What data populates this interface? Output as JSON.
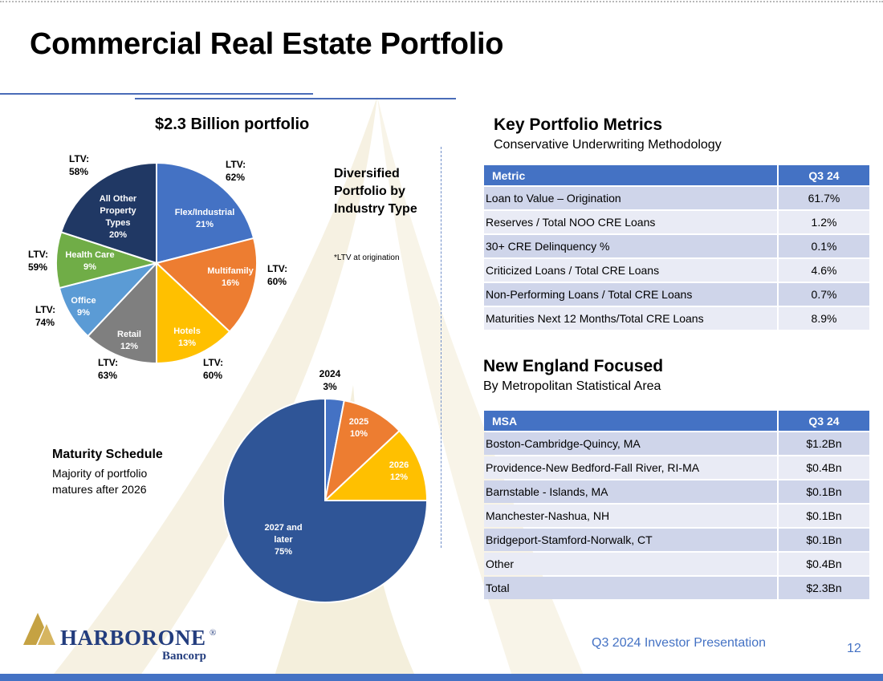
{
  "title": "Commercial Real Estate Portfolio",
  "portfolio_title": "$2.3 Billion portfolio",
  "diversified_label": "Diversified Portfolio by Industry Type",
  "footnote": "*LTV at origination",
  "maturity": {
    "title": "Maturity Schedule",
    "subtitle": "Majority of portfolio matures after 2026"
  },
  "colors": {
    "accent": "#4472c4",
    "flex": "#4472c4",
    "multifamily": "#ed7d31",
    "hotels": "#ffc000",
    "retail": "#7f7f7f",
    "office": "#5b9bd5",
    "health": "#70ad47",
    "other": "#203864"
  },
  "chart_data": [
    {
      "type": "pie",
      "title": "$2.3 Billion portfolio",
      "slices": [
        {
          "name": "Flex/Industrial",
          "pct_label": "21%",
          "value": 21,
          "ltv_label": "LTV:",
          "ltv": "62%"
        },
        {
          "name": "Multifamily",
          "pct_label": "16%",
          "value": 16,
          "ltv_label": "LTV:",
          "ltv": "60%"
        },
        {
          "name": "Hotels",
          "pct_label": "13%",
          "value": 13,
          "ltv_label": "LTV:",
          "ltv": "60%"
        },
        {
          "name": "Retail",
          "pct_label": "12%",
          "value": 12,
          "ltv_label": "LTV:",
          "ltv": "63%"
        },
        {
          "name": "Office",
          "pct_label": "9%",
          "value": 9,
          "ltv_label": "LTV:",
          "ltv": "74%"
        },
        {
          "name": "Health Care",
          "pct_label": "9%",
          "value": 9,
          "ltv_label": "LTV:",
          "ltv": "59%"
        },
        {
          "name": "All Other Property Types",
          "pct_label": "20%",
          "value": 20,
          "ltv_label": "LTV:",
          "ltv": "58%"
        }
      ]
    },
    {
      "type": "pie",
      "title": "Maturity Schedule",
      "slices": [
        {
          "name": "2024",
          "pct_label": "3%",
          "value": 3
        },
        {
          "name": "2025",
          "pct_label": "10%",
          "value": 10
        },
        {
          "name": "2026",
          "pct_label": "12%",
          "value": 12
        },
        {
          "name": "2027 and later",
          "pct_label": "75%",
          "value": 75
        }
      ]
    }
  ],
  "metrics": {
    "title": "Key Portfolio Metrics",
    "subtitle": "Conservative Underwriting Methodology",
    "col_metric": "Metric",
    "col_value": "Q3 24",
    "rows": [
      {
        "label": "Loan to Value – Origination",
        "value": "61.7%"
      },
      {
        "label": "Reserves / Total NOO CRE Loans",
        "value": "1.2%"
      },
      {
        "label": "30+ CRE Delinquency %",
        "value": "0.1%"
      },
      {
        "label": "Criticized Loans / Total CRE Loans",
        "value": "4.6%"
      },
      {
        "label": "Non-Performing Loans / Total CRE Loans",
        "value": "0.7%"
      },
      {
        "label": "Maturities Next 12 Months/Total CRE Loans",
        "value": "8.9%"
      }
    ]
  },
  "msa": {
    "title": "New England Focused",
    "subtitle": "By Metropolitan Statistical Area",
    "col_msa": "MSA",
    "col_value": "Q3 24",
    "rows": [
      {
        "label": "Boston-Cambridge-Quincy, MA",
        "value": "$1.2Bn"
      },
      {
        "label": "Providence-New Bedford-Fall River, RI-MA",
        "value": "$0.4Bn"
      },
      {
        "label": "Barnstable - Islands, MA",
        "value": "$0.1Bn"
      },
      {
        "label": "Manchester-Nashua, NH",
        "value": "$0.1Bn"
      },
      {
        "label": "Bridgeport-Stamford-Norwalk, CT",
        "value": "$0.1Bn"
      },
      {
        "label": "Other",
        "value": "$0.4Bn"
      },
      {
        "label": "Total",
        "value": "$2.3Bn"
      }
    ]
  },
  "logo": {
    "name": "HARBORONE",
    "registered": "®",
    "sub": "Bancorp"
  },
  "footer": {
    "text": "Q3 2024 Investor Presentation",
    "page": "12"
  }
}
